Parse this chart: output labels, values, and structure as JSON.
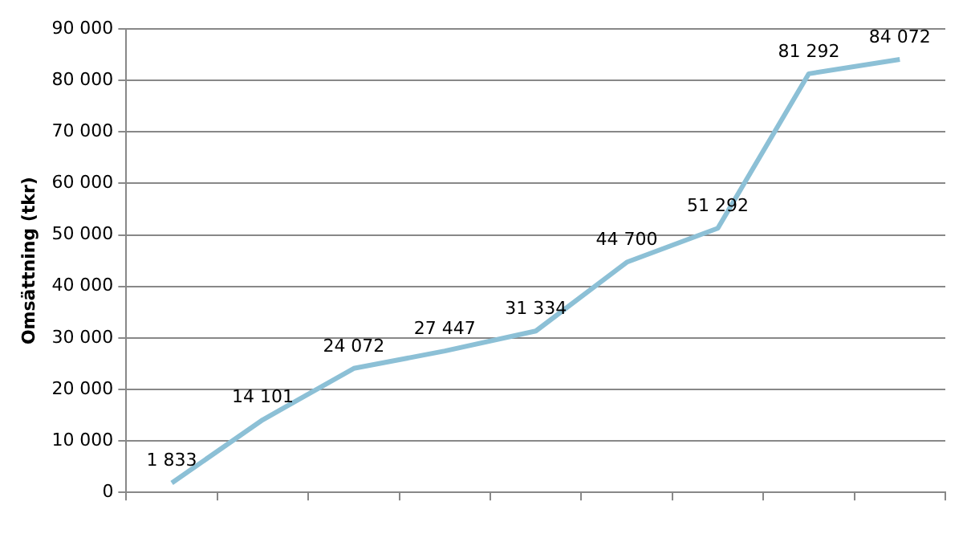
{
  "chart_data": {
    "type": "line",
    "ylabel": "Omsättning (tkr)",
    "categories": [
      null,
      null,
      null,
      null,
      null,
      null,
      null,
      null,
      null
    ],
    "series": [
      {
        "color": "#8cc0d6",
        "values": [
          1833,
          14101,
          24072,
          27447,
          31334,
          44700,
          51292,
          81292,
          84072
        ],
        "value_labels": [
          "1 833",
          "14 101",
          "24 072",
          "27 447",
          "31 334",
          "44 700",
          "51 292",
          "81 292",
          "84 072"
        ]
      }
    ],
    "ylim": [
      0,
      90000
    ],
    "yticks": [
      {
        "value": 0,
        "label": "0"
      },
      {
        "value": 10000,
        "label": "10 000"
      },
      {
        "value": 20000,
        "label": "20 000"
      },
      {
        "value": 30000,
        "label": "30 000"
      },
      {
        "value": 40000,
        "label": "40 000"
      },
      {
        "value": 50000,
        "label": "50 000"
      },
      {
        "value": 60000,
        "label": "60 000"
      },
      {
        "value": 70000,
        "label": "70 000"
      },
      {
        "value": 80000,
        "label": "80 000"
      },
      {
        "value": 90000,
        "label": "90 000"
      }
    ],
    "grid": "y",
    "legend": false,
    "marker": "none",
    "line_style": "solid"
  }
}
